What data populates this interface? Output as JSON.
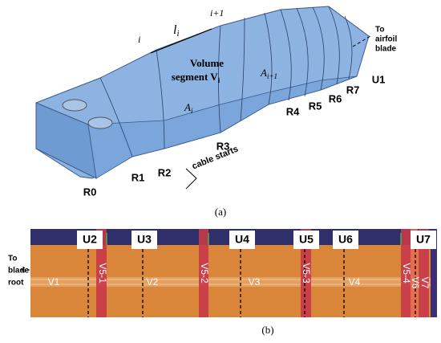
{
  "panel_a": {
    "index_i1": "i+1",
    "index_i": "i",
    "length": {
      "base": "l",
      "sub": "i"
    },
    "to_airfoil": [
      "To",
      "airfoil",
      "blade"
    ],
    "volume": [
      "Volume",
      "segment V"
    ],
    "volume_sub": "i",
    "area_i1": {
      "base": "A",
      "sub": "i+1"
    },
    "area_i": {
      "base": "A",
      "sub": "i"
    },
    "sections": [
      "R0",
      "R1",
      "R2",
      "R3",
      "R4",
      "R5",
      "R6",
      "R7",
      "U1"
    ],
    "cable": "cable starts",
    "caption": "(a)"
  },
  "panel_b": {
    "units": [
      "U2",
      "U3",
      "U4",
      "U5",
      "U6",
      "U7"
    ],
    "volumes": [
      "V1",
      "V5-1",
      "V2",
      "V5-2",
      "V3",
      "V5-3",
      "V4",
      "V5-4",
      "V6",
      "V7"
    ],
    "to_root": [
      "To",
      "blade",
      "root"
    ],
    "caption": "(b)"
  }
}
